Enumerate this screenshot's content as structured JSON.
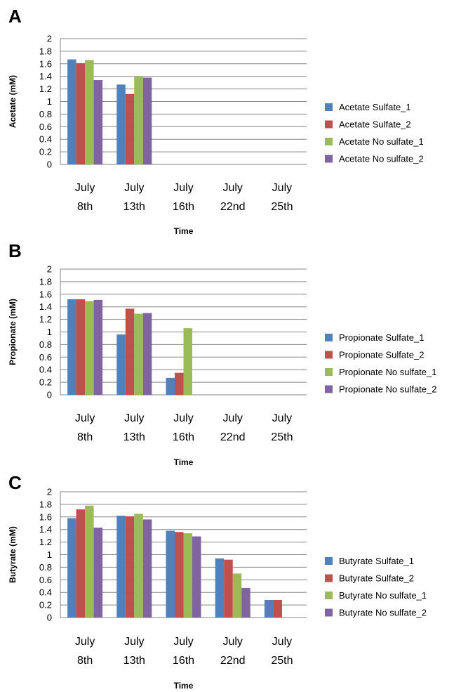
{
  "chart_data": [
    {
      "type": "bar",
      "panel": "A",
      "ylabel": "Acetate (mM)",
      "xlabel": "Time",
      "ylim": [
        0,
        2
      ],
      "yticks": [
        "0",
        "0.2",
        "0.4",
        "0.6",
        "0.8",
        "1",
        "1.2",
        "1.4",
        "1.6",
        "1.8",
        "2"
      ],
      "categories": [
        [
          "July",
          "8th"
        ],
        [
          "July",
          "13th"
        ],
        [
          "July",
          "16th"
        ],
        [
          "July",
          "22nd"
        ],
        [
          "July",
          "25th"
        ]
      ],
      "grid": true,
      "legend": "right",
      "series": [
        {
          "name": "Acetate Sulfate_1",
          "color": "#4F81BD",
          "values": [
            1.67,
            1.27,
            0,
            0,
            0
          ]
        },
        {
          "name": "Acetate Sulfate_2",
          "color": "#C0504D",
          "values": [
            1.61,
            1.12,
            0,
            0,
            0
          ]
        },
        {
          "name": "Acetate  No sulfate_1",
          "color": "#9BBB59",
          "values": [
            1.66,
            1.4,
            0,
            0,
            0
          ]
        },
        {
          "name": "Acetate  No sulfate_2",
          "color": "#8064A2",
          "values": [
            1.34,
            1.38,
            0,
            0,
            0
          ]
        }
      ]
    },
    {
      "type": "bar",
      "panel": "B",
      "ylabel": "Propionate (mM)",
      "xlabel": "Time",
      "ylim": [
        0,
        2
      ],
      "yticks": [
        "0",
        "0.2",
        "0.4",
        "0.6",
        "0.8",
        "1",
        "1.2",
        "1.4",
        "1.6",
        "1.8",
        "2"
      ],
      "categories": [
        [
          "July",
          "8th"
        ],
        [
          "July",
          "13th"
        ],
        [
          "July",
          "16th"
        ],
        [
          "July",
          "22nd"
        ],
        [
          "July",
          "25th"
        ]
      ],
      "grid": true,
      "legend": "right",
      "series": [
        {
          "name": "Propionate  Sulfate_1",
          "color": "#4F81BD",
          "values": [
            1.52,
            0.96,
            0.27,
            0,
            0
          ]
        },
        {
          "name": "Propionate Sulfate_2",
          "color": "#C0504D",
          "values": [
            1.52,
            1.37,
            0.35,
            0,
            0
          ]
        },
        {
          "name": "Propionate No sulfate_1",
          "color": "#9BBB59",
          "values": [
            1.49,
            1.29,
            1.06,
            0,
            0
          ]
        },
        {
          "name": "Propionate No sulfate_2",
          "color": "#8064A2",
          "values": [
            1.51,
            1.3,
            0,
            0,
            0
          ]
        }
      ]
    },
    {
      "type": "bar",
      "panel": "C",
      "ylabel": "Butyrate (mM)",
      "xlabel": "Time",
      "ylim": [
        0,
        2
      ],
      "yticks": [
        "0",
        "0.2",
        "0.4",
        "0.6",
        "0.8",
        "1",
        "1.2",
        "1.4",
        "1.6",
        "1.8",
        "2"
      ],
      "categories": [
        [
          "July",
          "8th"
        ],
        [
          "July",
          "13th"
        ],
        [
          "July",
          "16th"
        ],
        [
          "July",
          "22nd"
        ],
        [
          "July",
          "25th"
        ]
      ],
      "grid": true,
      "legend": "right",
      "series": [
        {
          "name": "Butyrate Sulfate_1",
          "color": "#4F81BD",
          "values": [
            1.58,
            1.62,
            1.38,
            0.94,
            0.28
          ]
        },
        {
          "name": "Butyrate Sulfate_2",
          "color": "#C0504D",
          "values": [
            1.72,
            1.61,
            1.36,
            0.92,
            0.28
          ]
        },
        {
          "name": "Butyrate  No sulfate_1",
          "color": "#9BBB59",
          "values": [
            1.78,
            1.65,
            1.34,
            0.7,
            0
          ]
        },
        {
          "name": "Butyrate  No sulfate_2",
          "color": "#8064A2",
          "values": [
            1.43,
            1.56,
            1.29,
            0.47,
            0
          ]
        }
      ]
    }
  ]
}
